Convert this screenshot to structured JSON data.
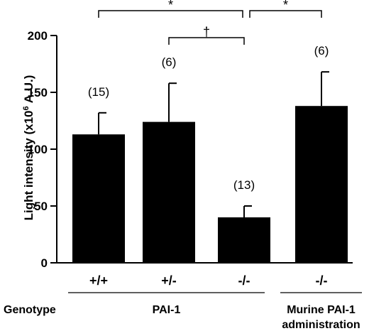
{
  "chart_data": {
    "type": "bar",
    "ylabel": "Light intensity (x10",
    "ylabel_sup": "6",
    "ylabel_tail": " A.U.)",
    "ylim": [
      0,
      200
    ],
    "yticks": [
      "0",
      "50",
      "100",
      "150",
      "200"
    ],
    "categories": [
      "+/+",
      "+/-",
      "-/-",
      "-/-"
    ],
    "values": [
      113,
      124,
      40,
      138
    ],
    "errors": [
      19,
      34,
      10,
      30
    ],
    "n_labels": [
      "(15)",
      "(6)",
      "(13)",
      "(6)"
    ],
    "bar_color": "#000000",
    "row_label": "Genotype",
    "groups": [
      {
        "label": "PAI-1",
        "bars": [
          0,
          1,
          2
        ]
      },
      {
        "label": "Murine PAI-1",
        "label2": "administration",
        "bars": [
          3
        ]
      }
    ],
    "significance": [
      {
        "from": 0,
        "to": 2,
        "symbol": "*"
      },
      {
        "from": 2,
        "to": 3,
        "symbol": "*"
      },
      {
        "from": 1,
        "to": 2,
        "symbol": "†"
      }
    ]
  }
}
